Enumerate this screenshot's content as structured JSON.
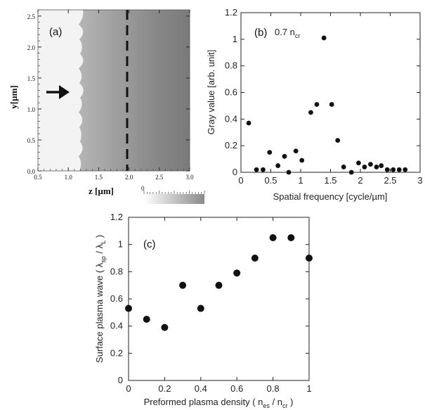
{
  "chart_data": [
    {
      "type": "heatmap",
      "panel_label": "(a)",
      "xlabel": "z [µm]",
      "ylabel": "y[µm]",
      "xlim": [
        0.5,
        3.0
      ],
      "ylim": [
        0.0,
        2.6
      ],
      "xticks": [
        "0.5",
        "1.0",
        "1.5",
        "2.0",
        "2.5",
        "3.0"
      ],
      "yticks": [
        "0.0",
        "0.5",
        "1.0",
        "1.5",
        "2.0",
        "2.5"
      ],
      "dashed_line_z": 1.97,
      "arrow_y": 1.1,
      "colorbar_label": "0"
    },
    {
      "type": "scatter",
      "panel_label": "(b)",
      "annotation": "0.7 n",
      "annotation_sub": "cr",
      "xlabel": "Spatial frequency [cycle/µm]",
      "ylabel": "Gray value [arb. unit]",
      "xlim": [
        0,
        3
      ],
      "ylim": [
        0,
        1.2
      ],
      "xticks": [
        "0",
        "0.5",
        "1",
        "1.5",
        "2",
        "2.5",
        "3"
      ],
      "yticks": [
        "0",
        "0.2",
        "0.4",
        "0.6",
        "0.8",
        "1",
        "1.2"
      ],
      "x": [
        0.13,
        0.26,
        0.37,
        0.48,
        0.62,
        0.73,
        0.8,
        0.92,
        1.02,
        1.17,
        1.27,
        1.39,
        1.52,
        1.62,
        1.72,
        1.85,
        1.97,
        2.07,
        2.17,
        2.27,
        2.35,
        2.45,
        2.55,
        2.65,
        2.75
      ],
      "y": [
        0.37,
        0.02,
        0.02,
        0.15,
        0.05,
        0.12,
        0.0,
        0.16,
        0.09,
        0.45,
        0.51,
        1.01,
        0.51,
        0.24,
        0.04,
        0.0,
        0.07,
        0.04,
        0.06,
        0.04,
        0.05,
        0.02,
        0.02,
        0.02,
        0.02
      ]
    },
    {
      "type": "scatter",
      "panel_label": "(c)",
      "xlabel": "Preformed plasma density ( n",
      "xlabel_sub1": "es",
      "xlabel_mid": " / n",
      "xlabel_sub2": "cr",
      "xlabel_end": " )",
      "ylabel": "Surface plasma wave ( λ",
      "ylabel_sub1": "sp",
      "ylabel_mid": " / λ",
      "ylabel_sub2": "L",
      "ylabel_end": " )",
      "xlim": [
        0,
        1
      ],
      "ylim": [
        0,
        1.2
      ],
      "xticks": [
        "0",
        "0.2",
        "0.4",
        "0.6",
        "0.8",
        "1"
      ],
      "yticks": [
        "0",
        "0.2",
        "0.4",
        "0.6",
        "0.8",
        "1",
        "1.2"
      ],
      "x": [
        0.0,
        0.1,
        0.2,
        0.3,
        0.4,
        0.5,
        0.6,
        0.7,
        0.8,
        0.9,
        1.0
      ],
      "y": [
        0.53,
        0.45,
        0.39,
        0.7,
        0.53,
        0.7,
        0.79,
        0.9,
        1.05,
        1.05,
        0.9
      ]
    }
  ]
}
